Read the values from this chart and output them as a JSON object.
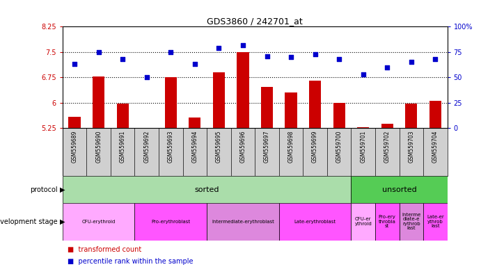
{
  "title": "GDS3860 / 242701_at",
  "samples": [
    "GSM559689",
    "GSM559690",
    "GSM559691",
    "GSM559692",
    "GSM559693",
    "GSM559694",
    "GSM559695",
    "GSM559696",
    "GSM559697",
    "GSM559698",
    "GSM559699",
    "GSM559700",
    "GSM559701",
    "GSM559702",
    "GSM559703",
    "GSM559704"
  ],
  "bar_values": [
    5.58,
    6.78,
    5.97,
    5.24,
    6.75,
    5.56,
    6.9,
    7.5,
    6.47,
    6.3,
    6.65,
    6.0,
    5.27,
    5.38,
    5.97,
    6.06
  ],
  "dot_values": [
    63,
    75,
    68,
    50,
    75,
    63,
    79,
    82,
    71,
    70,
    73,
    68,
    53,
    60,
    65,
    68
  ],
  "bar_color": "#cc0000",
  "dot_color": "#0000cc",
  "ylim_left": [
    5.25,
    8.25
  ],
  "ylim_right": [
    0,
    100
  ],
  "yticks_left": [
    5.25,
    6.0,
    6.75,
    7.5,
    8.25
  ],
  "yticks_right": [
    0,
    25,
    50,
    75,
    100
  ],
  "ytick_labels_left": [
    "5.25",
    "6",
    "6.75",
    "7.5",
    "8.25"
  ],
  "ytick_labels_right": [
    "0",
    "25",
    "50",
    "75",
    "100%"
  ],
  "hlines": [
    6.0,
    6.75,
    7.5
  ],
  "protocol_color_sorted": "#aaddaa",
  "protocol_color_unsorted": "#55cc55",
  "dev_stage_groups_sorted": [
    {
      "label": "CFU-erythroid",
      "start": 0,
      "end": 2,
      "color": "#ffaaff"
    },
    {
      "label": "Pro-erythroblast",
      "start": 3,
      "end": 5,
      "color": "#ff55ff"
    },
    {
      "label": "Intermediate-erythroblast",
      "start": 6,
      "end": 8,
      "color": "#dd88dd"
    },
    {
      "label": "Late-erythroblast",
      "start": 9,
      "end": 11,
      "color": "#ff55ff"
    }
  ],
  "dev_stage_groups_unsorted": [
    {
      "label": "CFU-er\nythroid",
      "start": 12,
      "end": 12,
      "color": "#ffaaff"
    },
    {
      "label": "Pro-ery\nthrobla\nst",
      "start": 13,
      "end": 13,
      "color": "#ff55ff"
    },
    {
      "label": "Interme\ndiate-e\nrythrob\nlast",
      "start": 14,
      "end": 14,
      "color": "#dd88dd"
    },
    {
      "label": "Late-er\nythrob\nlast",
      "start": 15,
      "end": 15,
      "color": "#ff55ff"
    }
  ],
  "tick_label_color_left": "#cc0000",
  "tick_label_color_right": "#0000cc",
  "plot_bg": "#ffffff",
  "xticklabel_bg": "#d0d0d0"
}
